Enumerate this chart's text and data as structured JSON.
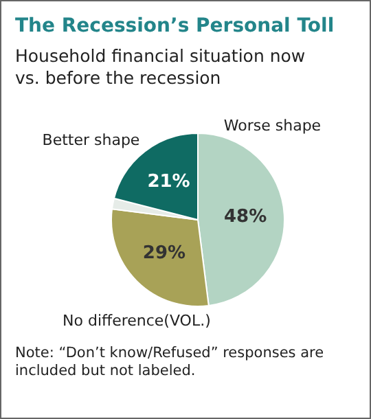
{
  "chart_data": {
    "type": "pie",
    "title": "The Recession’s Personal Toll",
    "subtitle": "Household financial situation now vs. before the recession",
    "categories": [
      "Worse shape",
      "No difference(VOL.)",
      null,
      "Better shape"
    ],
    "values": [
      48,
      29,
      2,
      21
    ],
    "colors": [
      "#b3d4c3",
      "#a8a257",
      "#e6ece8",
      "#0f6b63"
    ],
    "value_labels": [
      "48%",
      "29%",
      null,
      "21%"
    ],
    "annotations": [
      "Note: “Don’t know/Refused” responses are included but not labeled."
    ]
  }
}
